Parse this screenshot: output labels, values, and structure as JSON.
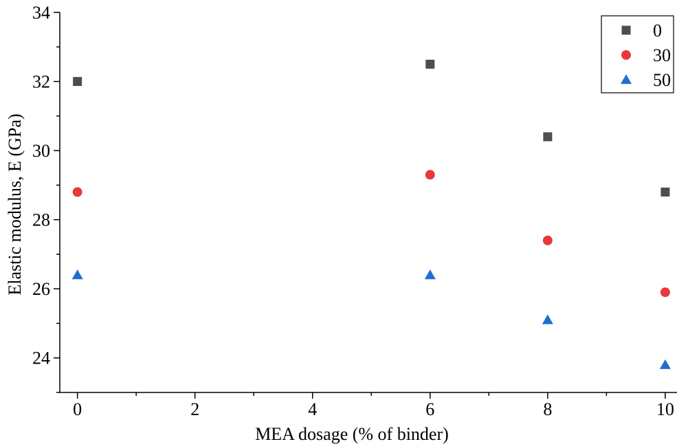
{
  "chart_data": {
    "type": "scatter",
    "title": "",
    "xlabel": "MEA dosage (% of binder)",
    "ylabel": "Elastic modulus, E (GPa)",
    "xlim": [
      -0.3,
      10.2
    ],
    "ylim": [
      23,
      34
    ],
    "xticks": [
      0,
      2,
      4,
      6,
      8,
      10
    ],
    "yticks": [
      24,
      26,
      28,
      30,
      32,
      34
    ],
    "grid": false,
    "legend_position": "top-right",
    "series": [
      {
        "name": "0",
        "marker": "square",
        "color": "#4d4d4d",
        "x": [
          0,
          6,
          8,
          10
        ],
        "y": [
          32.0,
          32.5,
          30.4,
          28.8
        ]
      },
      {
        "name": "30",
        "marker": "circle",
        "color": "#e8383d",
        "x": [
          0,
          6,
          8,
          10
        ],
        "y": [
          28.8,
          29.3,
          27.4,
          25.9
        ]
      },
      {
        "name": "50",
        "marker": "triangle",
        "color": "#1f6fd1",
        "x": [
          0,
          6,
          8,
          10
        ],
        "y": [
          26.4,
          26.4,
          25.1,
          23.8
        ]
      }
    ]
  }
}
